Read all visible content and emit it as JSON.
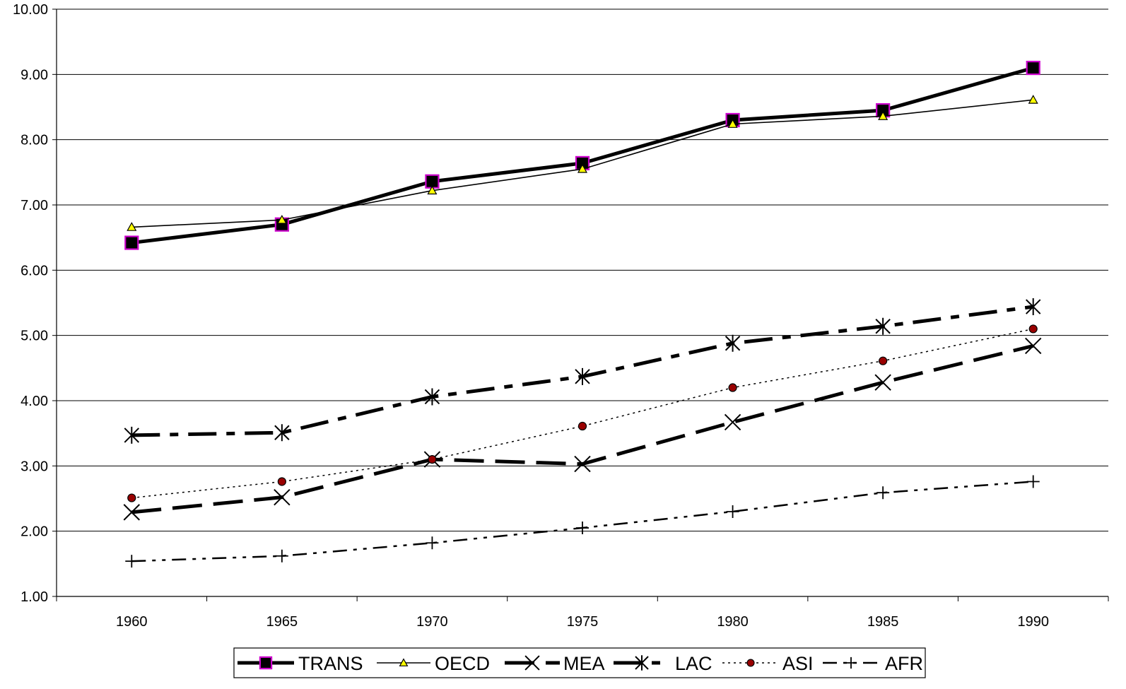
{
  "chart_data": {
    "type": "line",
    "categories": [
      "1960",
      "1965",
      "1970",
      "1975",
      "1980",
      "1985",
      "1990"
    ],
    "ylim": [
      1.0,
      10.0
    ],
    "yticks": [
      "1.00",
      "2.00",
      "3.00",
      "4.00",
      "5.00",
      "6.00",
      "7.00",
      "8.00",
      "9.00",
      "10.00"
    ],
    "grid": true,
    "legend_position": "bottom",
    "series": [
      {
        "name": "TRANS",
        "values": [
          6.42,
          6.7,
          7.36,
          7.64,
          8.3,
          8.45,
          9.1
        ],
        "color": "#000000",
        "marker": "square",
        "marker_edge": "#cc00cc",
        "dash": "solid"
      },
      {
        "name": "OECD",
        "values": [
          6.66,
          6.77,
          7.22,
          7.55,
          8.24,
          8.36,
          8.61
        ],
        "color": "#000000",
        "marker": "triangle",
        "marker_fill": "#ffff00",
        "dash": "solid"
      },
      {
        "name": "MEA",
        "values": [
          2.29,
          2.52,
          3.1,
          3.03,
          3.67,
          4.28,
          4.84
        ],
        "color": "#000000",
        "marker": "x",
        "dash": "long-dash"
      },
      {
        "name": "LAC",
        "values": [
          3.47,
          3.51,
          4.06,
          4.37,
          4.88,
          5.14,
          5.44
        ],
        "color": "#000000",
        "marker": "asterisk",
        "dash": "dash-dot"
      },
      {
        "name": "ASI",
        "values": [
          2.51,
          2.76,
          3.1,
          3.61,
          4.2,
          4.61,
          5.1
        ],
        "color": "#000000",
        "marker": "circle",
        "marker_fill": "#990000",
        "dash": "dotted"
      },
      {
        "name": "AFR",
        "values": [
          1.54,
          1.62,
          1.82,
          2.05,
          2.3,
          2.59,
          2.76
        ],
        "color": "#000000",
        "marker": "plus",
        "dash": "dash-dot-dot"
      }
    ]
  }
}
